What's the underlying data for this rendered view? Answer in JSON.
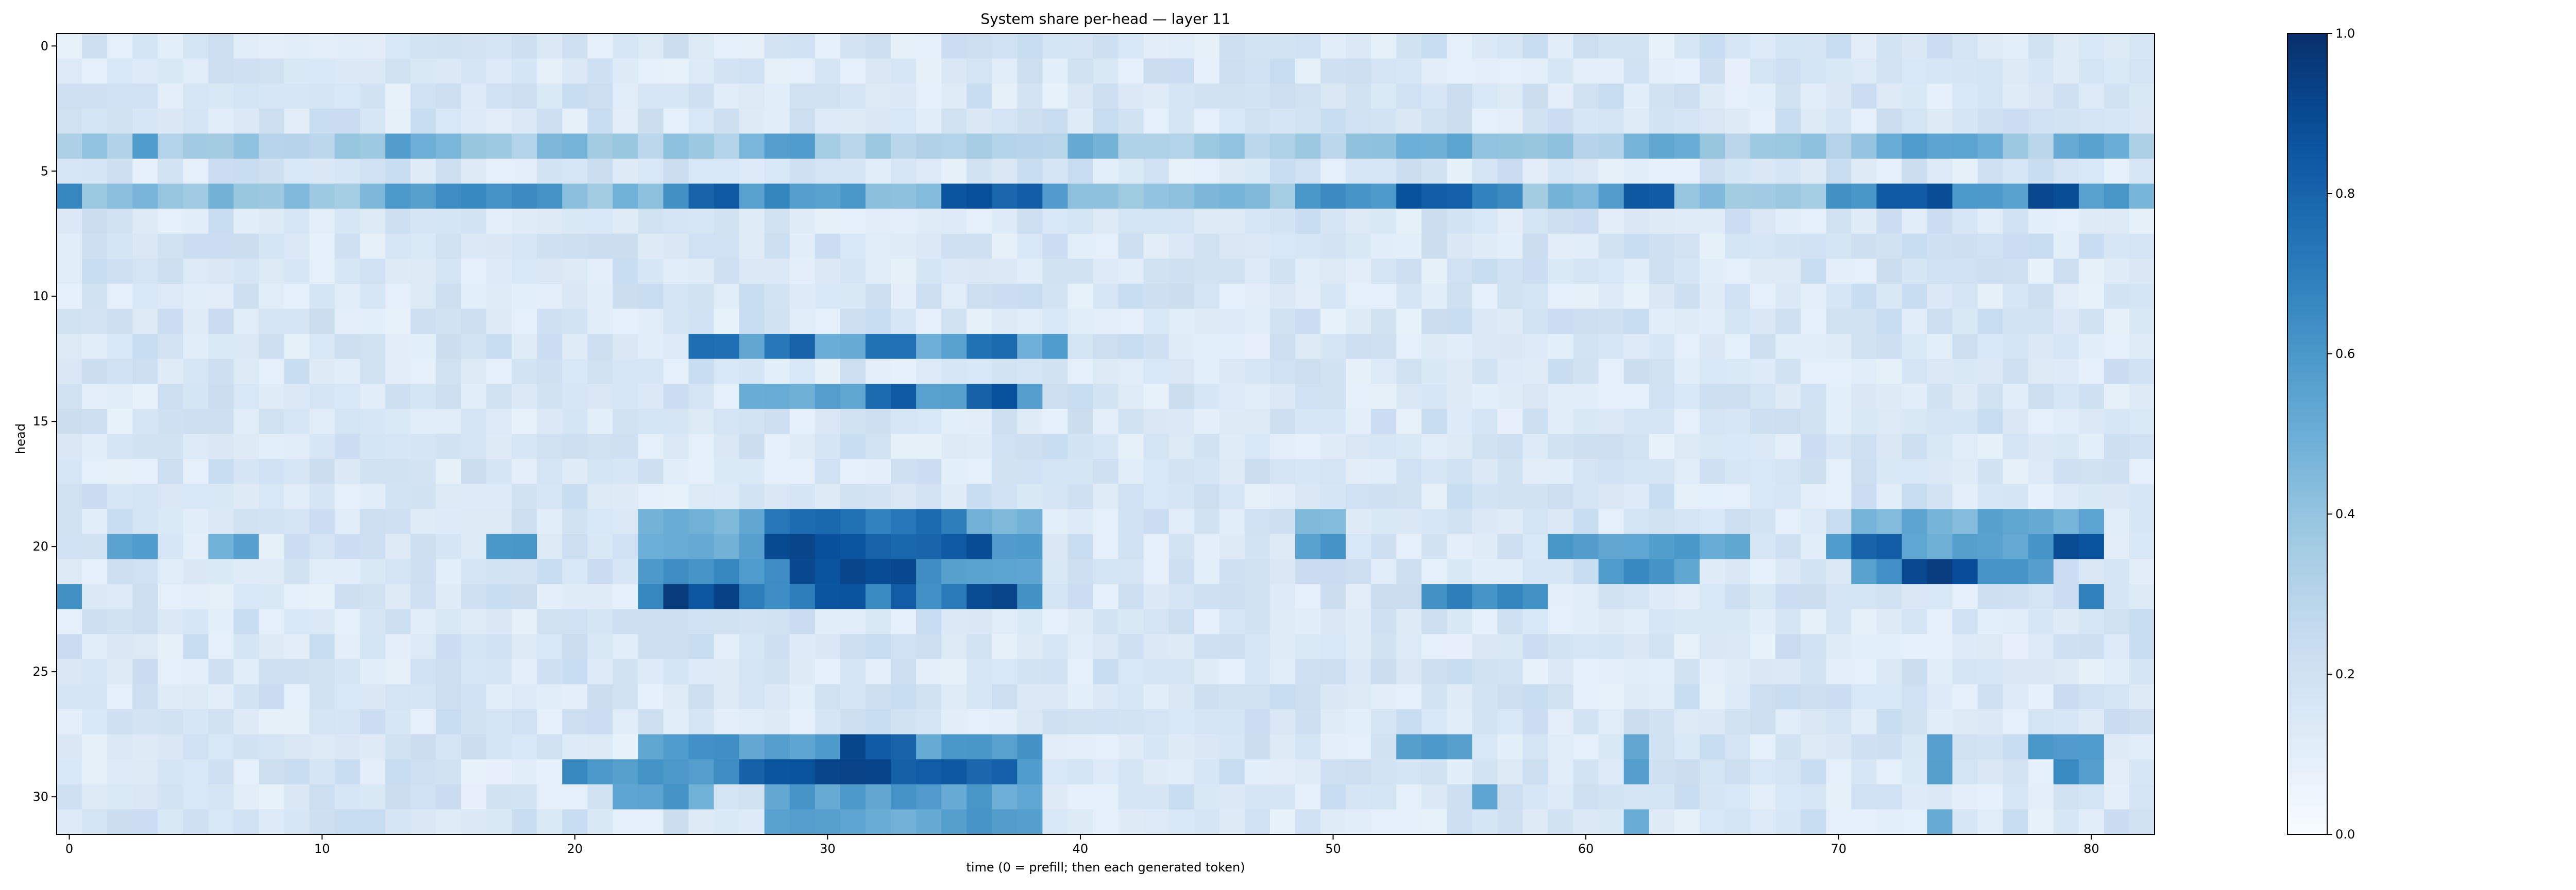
{
  "chart_data": {
    "type": "heatmap",
    "title": "System share per-head — layer 11",
    "xlabel": "time (0 = prefill; then each generated token)",
    "ylabel": "head",
    "x_range": [
      0,
      82
    ],
    "y_range": [
      0,
      31
    ],
    "x_ticks": [
      "0",
      "10",
      "20",
      "30",
      "40",
      "50",
      "60",
      "70",
      "80"
    ],
    "y_ticks": [
      "0",
      "5",
      "10",
      "15",
      "20",
      "25",
      "30"
    ],
    "colorbar": {
      "colormap": "Blues",
      "min": 0.0,
      "max": 1.0,
      "ticks": [
        "0.0",
        "0.2",
        "0.4",
        "0.6",
        "0.8",
        "1.0"
      ]
    },
    "highlights": [
      {
        "head": 4,
        "t": [
          [
            0,
            82
          ]
        ],
        "v": 0.35
      },
      {
        "head": 4,
        "t": [
          [
            3,
            3
          ],
          [
            13,
            15
          ],
          [
            19,
            20
          ],
          [
            27,
            29
          ],
          [
            40,
            41
          ],
          [
            53,
            55
          ],
          [
            62,
            64
          ],
          [
            72,
            76
          ],
          [
            79,
            81
          ]
        ],
        "v": 0.52
      },
      {
        "head": 6,
        "t": [
          [
            0,
            82
          ]
        ],
        "v": 0.42
      },
      {
        "head": 6,
        "t": [
          [
            0,
            0
          ],
          [
            13,
            19
          ],
          [
            24,
            31
          ],
          [
            35,
            39
          ],
          [
            49,
            57
          ],
          [
            61,
            63
          ],
          [
            70,
            81
          ]
        ],
        "v": 0.62
      },
      {
        "head": 6,
        "t": [
          [
            25,
            26
          ],
          [
            35,
            38
          ],
          [
            53,
            55
          ],
          [
            62,
            63
          ],
          [
            72,
            74
          ],
          [
            78,
            79
          ]
        ],
        "v": 0.85
      },
      {
        "head": 12,
        "t": [
          [
            25,
            39
          ]
        ],
        "v": 0.55
      },
      {
        "head": 12,
        "t": [
          [
            25,
            26
          ],
          [
            28,
            29
          ],
          [
            32,
            33
          ],
          [
            36,
            37
          ]
        ],
        "v": 0.8
      },
      {
        "head": 14,
        "t": [
          [
            27,
            38
          ]
        ],
        "v": 0.55
      },
      {
        "head": 14,
        "t": [
          [
            32,
            33
          ],
          [
            36,
            37
          ]
        ],
        "v": 0.82
      },
      {
        "head": 19,
        "t": [
          [
            23,
            38
          ],
          [
            49,
            50
          ],
          [
            71,
            80
          ]
        ],
        "v": 0.5
      },
      {
        "head": 19,
        "t": [
          [
            28,
            35
          ]
        ],
        "v": 0.72
      },
      {
        "head": 20,
        "t": [
          [
            2,
            3
          ],
          [
            6,
            7
          ],
          [
            17,
            18
          ],
          [
            23,
            38
          ],
          [
            49,
            50
          ],
          [
            59,
            66
          ],
          [
            70,
            80
          ]
        ],
        "v": 0.55
      },
      {
        "head": 20,
        "t": [
          [
            28,
            36
          ],
          [
            71,
            72
          ],
          [
            79,
            80
          ]
        ],
        "v": 0.85
      },
      {
        "head": 21,
        "t": [
          [
            23,
            38
          ],
          [
            61,
            64
          ],
          [
            71,
            78
          ]
        ],
        "v": 0.6
      },
      {
        "head": 21,
        "t": [
          [
            29,
            33
          ],
          [
            73,
            75
          ]
        ],
        "v": 0.88
      },
      {
        "head": 22,
        "t": [
          [
            0,
            0
          ],
          [
            23,
            38
          ],
          [
            54,
            58
          ],
          [
            80,
            80
          ]
        ],
        "v": 0.65
      },
      {
        "head": 22,
        "t": [
          [
            24,
            26
          ],
          [
            30,
            31
          ],
          [
            33,
            33
          ],
          [
            36,
            37
          ]
        ],
        "v": 0.9
      },
      {
        "head": 28,
        "t": [
          [
            23,
            38
          ],
          [
            53,
            55
          ],
          [
            62,
            62
          ],
          [
            74,
            74
          ],
          [
            78,
            80
          ]
        ],
        "v": 0.58
      },
      {
        "head": 28,
        "t": [
          [
            31,
            33
          ]
        ],
        "v": 0.85
      },
      {
        "head": 29,
        "t": [
          [
            20,
            38
          ],
          [
            62,
            62
          ],
          [
            74,
            74
          ],
          [
            79,
            80
          ]
        ],
        "v": 0.62
      },
      {
        "head": 29,
        "t": [
          [
            27,
            37
          ]
        ],
        "v": 0.86
      },
      {
        "head": 30,
        "t": [
          [
            22,
            25
          ],
          [
            28,
            38
          ],
          [
            56,
            56
          ]
        ],
        "v": 0.55
      },
      {
        "head": 31,
        "t": [
          [
            28,
            38
          ],
          [
            62,
            62
          ],
          [
            74,
            74
          ]
        ],
        "v": 0.55
      }
    ]
  }
}
